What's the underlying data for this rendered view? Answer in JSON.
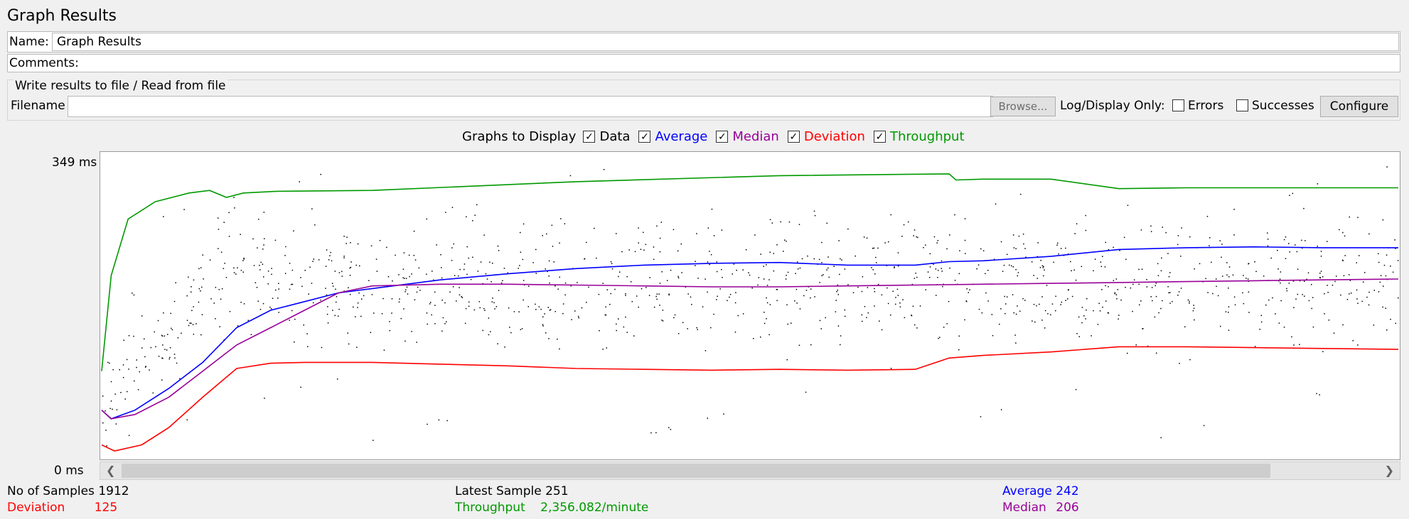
{
  "window": {
    "title": "Graph Results"
  },
  "form": {
    "name_label": "Name:",
    "name_value": "Graph Results",
    "comments_label": "Comments:",
    "comments_value": ""
  },
  "file_group": {
    "title": "Write results to file / Read from file",
    "filename_label": "Filename",
    "filename_value": "",
    "browse_label": "Browse...",
    "log_display_label": "Log/Display Only:",
    "errors_label": "Errors",
    "errors_checked": false,
    "successes_label": "Successes",
    "successes_checked": false,
    "configure_label": "Configure"
  },
  "graphs_to_display": {
    "label": "Graphs to Display",
    "items": [
      {
        "label": "Data",
        "checked": true,
        "color": "#000000"
      },
      {
        "label": "Average",
        "checked": true,
        "color": "#0000ff"
      },
      {
        "label": "Median",
        "checked": true,
        "color": "#990099"
      },
      {
        "label": "Deviation",
        "checked": true,
        "color": "#ff0000"
      },
      {
        "label": "Throughput",
        "checked": true,
        "color": "#009900"
      }
    ]
  },
  "chart_data": {
    "type": "line",
    "ylim": [
      0,
      349
    ],
    "y_top_label": "349 ms",
    "y_bottom_label": "0 ms",
    "x_range": [
      1,
      1912
    ],
    "series": [
      {
        "name": "Throughput",
        "color": "#009900",
        "x": [
          1,
          15,
          40,
          80,
          130,
          160,
          185,
          210,
          260,
          400,
          700,
          1000,
          1250,
          1260,
          1300,
          1400,
          1500,
          1600,
          1700,
          1800,
          1912
        ],
        "y": [
          100,
          210,
          275,
          295,
          305,
          308,
          300,
          305,
          307,
          308,
          318,
          325,
          327,
          320,
          321,
          321,
          310,
          311,
          311,
          311,
          311
        ]
      },
      {
        "name": "Average",
        "color": "#0000ff",
        "x": [
          1,
          15,
          50,
          100,
          150,
          200,
          250,
          300,
          350,
          400,
          500,
          600,
          700,
          800,
          900,
          1000,
          1100,
          1200,
          1250,
          1300,
          1400,
          1500,
          1600,
          1700,
          1800,
          1912
        ],
        "y": [
          55,
          45,
          55,
          80,
          110,
          150,
          170,
          180,
          190,
          195,
          205,
          212,
          218,
          222,
          224,
          225,
          222,
          222,
          226,
          227,
          232,
          240,
          242,
          243,
          242,
          242
        ]
      },
      {
        "name": "Median",
        "color": "#990099",
        "x": [
          1,
          15,
          50,
          100,
          150,
          200,
          250,
          300,
          350,
          400,
          500,
          600,
          700,
          800,
          900,
          1000,
          1100,
          1200,
          1300,
          1400,
          1500,
          1600,
          1700,
          1800,
          1912
        ],
        "y": [
          55,
          45,
          50,
          70,
          100,
          130,
          150,
          170,
          190,
          198,
          200,
          200,
          199,
          198,
          197,
          197,
          198,
          199,
          200,
          201,
          202,
          203,
          204,
          205,
          206
        ]
      },
      {
        "name": "Deviation",
        "color": "#ff0000",
        "x": [
          1,
          20,
          60,
          100,
          150,
          200,
          250,
          300,
          400,
          500,
          600,
          700,
          800,
          900,
          1000,
          1100,
          1200,
          1250,
          1300,
          1400,
          1500,
          1600,
          1700,
          1800,
          1912
        ],
        "y": [
          15,
          8,
          15,
          35,
          70,
          103,
          109,
          110,
          110,
          108,
          106,
          103,
          102,
          101,
          102,
          101,
          102,
          115,
          118,
          122,
          128,
          128,
          127,
          126,
          125
        ]
      }
    ]
  },
  "stats": {
    "samples_label": "No of Samples",
    "samples_value": "1912",
    "deviation_label": "Deviation",
    "deviation_value": "125",
    "latest_label": "Latest Sample",
    "latest_value": "251",
    "throughput_label": "Throughput",
    "throughput_value": "2,356.082/minute",
    "average_label": "Average",
    "average_value": "242",
    "median_label": "Median",
    "median_value": "206"
  },
  "icons": {
    "left_arrow": "chevron-left-icon",
    "right_arrow": "chevron-right-icon"
  }
}
